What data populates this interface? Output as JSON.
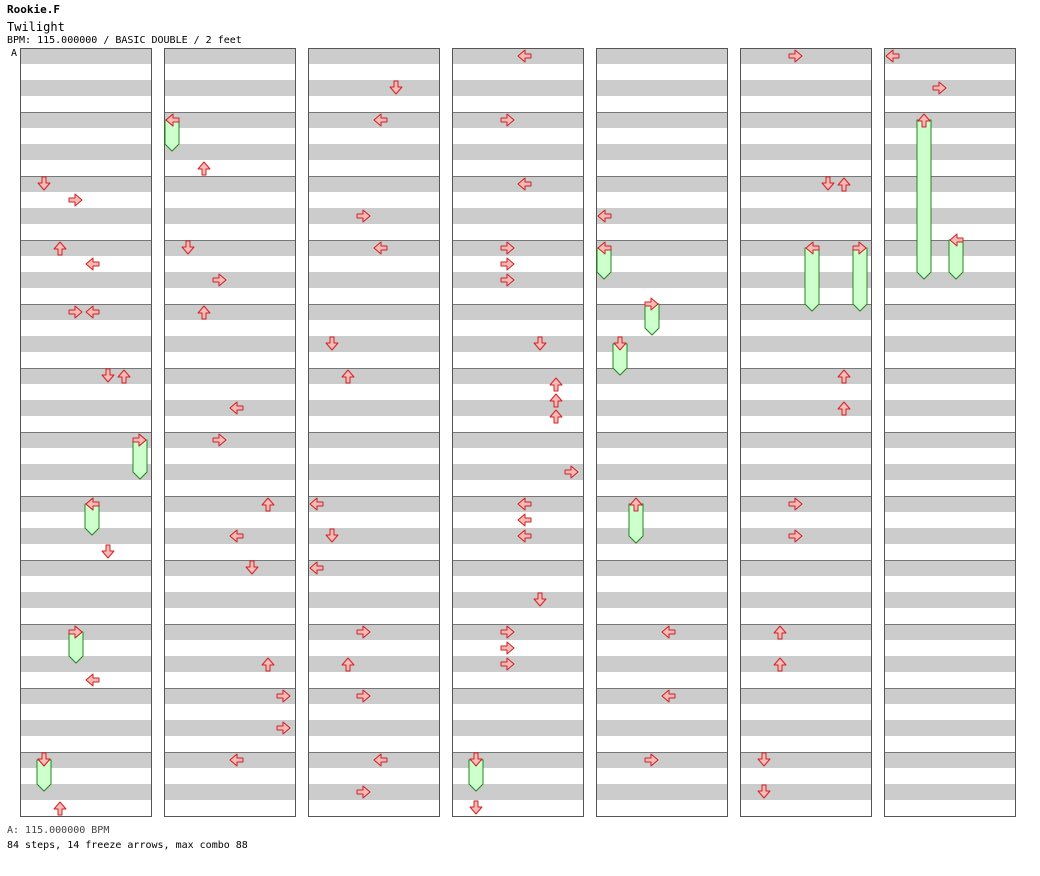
{
  "header": {
    "artist": "Rookie.F",
    "song": "Twilight",
    "info": "BPM: 115.000000 / BASIC DOUBLE / 2 feet"
  },
  "marker_label": "A",
  "footer": {
    "bpm_line": "A: 115.000000 BPM",
    "stats_line": "84 steps, 14 freeze arrows, max combo 88"
  },
  "colors": {
    "stripe_gray": "#cccccc",
    "stripe_white": "#ffffff",
    "border": "#555555",
    "arrow_fill": "#ffb8b8",
    "arrow_stroke": "#cc2222",
    "freeze_fill": "#ccffcc",
    "freeze_stroke": "#228822",
    "marker_line": "#3c7fd8"
  },
  "chart_data": {
    "type": "step-chart",
    "style": "BASIC DOUBLE",
    "bpm": 115,
    "lanes": 8,
    "lane_order": [
      "L",
      "D",
      "U",
      "R",
      "L",
      "D",
      "U",
      "R"
    ],
    "columns": 7,
    "measures_per_column": 12,
    "subdivisions_per_measure": 8,
    "freezes": [
      {
        "col": 0,
        "lane": 7,
        "start": 48,
        "end": 52.5
      },
      {
        "col": 0,
        "lane": 4,
        "start": 56,
        "end": 59.5
      },
      {
        "col": 0,
        "lane": 3,
        "start": 72,
        "end": 75.5
      },
      {
        "col": 0,
        "lane": 1,
        "start": 88,
        "end": 91.5
      },
      {
        "col": 1,
        "lane": 0,
        "start": 8,
        "end": 11.5
      },
      {
        "col": 3,
        "lane": 1,
        "start": 88,
        "end": 91.5
      },
      {
        "col": 4,
        "lane": 0,
        "start": 24,
        "end": 27.5
      },
      {
        "col": 4,
        "lane": 3,
        "start": 31,
        "end": 34.5
      },
      {
        "col": 4,
        "lane": 1,
        "start": 36,
        "end": 39.5
      },
      {
        "col": 4,
        "lane": 2,
        "start": 56,
        "end": 60.5
      },
      {
        "col": 5,
        "lane": 4,
        "start": 24,
        "end": 31.5
      },
      {
        "col": 5,
        "lane": 7,
        "start": 24,
        "end": 31.5
      },
      {
        "col": 6,
        "lane": 2,
        "start": 8,
        "end": 27.5
      },
      {
        "col": 6,
        "lane": 4,
        "start": 23,
        "end": 27.5
      }
    ],
    "notes": [
      {
        "col": 0,
        "lane": 1,
        "pos": 16
      },
      {
        "col": 0,
        "lane": 3,
        "pos": 18
      },
      {
        "col": 0,
        "lane": 2,
        "pos": 24
      },
      {
        "col": 0,
        "lane": 4,
        "pos": 26
      },
      {
        "col": 0,
        "lane": 3,
        "pos": 32
      },
      {
        "col": 0,
        "lane": 4,
        "pos": 32
      },
      {
        "col": 0,
        "lane": 5,
        "pos": 40
      },
      {
        "col": 0,
        "lane": 6,
        "pos": 40
      },
      {
        "col": 0,
        "lane": 7,
        "pos": 48
      },
      {
        "col": 0,
        "lane": 4,
        "pos": 56
      },
      {
        "col": 0,
        "lane": 5,
        "pos": 62
      },
      {
        "col": 0,
        "lane": 3,
        "pos": 72
      },
      {
        "col": 0,
        "lane": 4,
        "pos": 78
      },
      {
        "col": 0,
        "lane": 1,
        "pos": 88
      },
      {
        "col": 0,
        "lane": 2,
        "pos": 94
      },
      {
        "col": 1,
        "lane": 0,
        "pos": 8
      },
      {
        "col": 1,
        "lane": 2,
        "pos": 14
      },
      {
        "col": 1,
        "lane": 1,
        "pos": 24
      },
      {
        "col": 1,
        "lane": 3,
        "pos": 28
      },
      {
        "col": 1,
        "lane": 2,
        "pos": 32
      },
      {
        "col": 1,
        "lane": 4,
        "pos": 44
      },
      {
        "col": 1,
        "lane": 3,
        "pos": 48
      },
      {
        "col": 1,
        "lane": 6,
        "pos": 56
      },
      {
        "col": 1,
        "lane": 4,
        "pos": 60
      },
      {
        "col": 1,
        "lane": 5,
        "pos": 64
      },
      {
        "col": 1,
        "lane": 6,
        "pos": 76
      },
      {
        "col": 1,
        "lane": 7,
        "pos": 80
      },
      {
        "col": 1,
        "lane": 7,
        "pos": 84
      },
      {
        "col": 1,
        "lane": 4,
        "pos": 88
      },
      {
        "col": 2,
        "lane": 5,
        "pos": 4
      },
      {
        "col": 2,
        "lane": 4,
        "pos": 8
      },
      {
        "col": 2,
        "lane": 3,
        "pos": 20
      },
      {
        "col": 2,
        "lane": 4,
        "pos": 24
      },
      {
        "col": 2,
        "lane": 1,
        "pos": 36
      },
      {
        "col": 2,
        "lane": 2,
        "pos": 40
      },
      {
        "col": 2,
        "lane": 0,
        "pos": 56
      },
      {
        "col": 2,
        "lane": 1,
        "pos": 60
      },
      {
        "col": 2,
        "lane": 0,
        "pos": 64
      },
      {
        "col": 2,
        "lane": 3,
        "pos": 72
      },
      {
        "col": 2,
        "lane": 2,
        "pos": 76
      },
      {
        "col": 2,
        "lane": 3,
        "pos": 80
      },
      {
        "col": 2,
        "lane": 4,
        "pos": 88
      },
      {
        "col": 2,
        "lane": 3,
        "pos": 92
      },
      {
        "col": 3,
        "lane": 4,
        "pos": 0
      },
      {
        "col": 3,
        "lane": 3,
        "pos": 8
      },
      {
        "col": 3,
        "lane": 4,
        "pos": 16
      },
      {
        "col": 3,
        "lane": 3,
        "pos": 24
      },
      {
        "col": 3,
        "lane": 3,
        "pos": 26
      },
      {
        "col": 3,
        "lane": 3,
        "pos": 28
      },
      {
        "col": 3,
        "lane": 5,
        "pos": 36
      },
      {
        "col": 3,
        "lane": 6,
        "pos": 41
      },
      {
        "col": 3,
        "lane": 6,
        "pos": 43
      },
      {
        "col": 3,
        "lane": 6,
        "pos": 45
      },
      {
        "col": 3,
        "lane": 7,
        "pos": 52
      },
      {
        "col": 3,
        "lane": 4,
        "pos": 56
      },
      {
        "col": 3,
        "lane": 4,
        "pos": 58
      },
      {
        "col": 3,
        "lane": 4,
        "pos": 60
      },
      {
        "col": 3,
        "lane": 5,
        "pos": 68
      },
      {
        "col": 3,
        "lane": 3,
        "pos": 72
      },
      {
        "col": 3,
        "lane": 3,
        "pos": 74
      },
      {
        "col": 3,
        "lane": 3,
        "pos": 76
      },
      {
        "col": 3,
        "lane": 1,
        "pos": 94
      },
      {
        "col": 4,
        "lane": 0,
        "pos": 20
      },
      {
        "col": 4,
        "lane": 4,
        "pos": 72
      },
      {
        "col": 4,
        "lane": 4,
        "pos": 80
      },
      {
        "col": 4,
        "lane": 3,
        "pos": 88
      },
      {
        "col": 5,
        "lane": 3,
        "pos": 0
      },
      {
        "col": 5,
        "lane": 5,
        "pos": 16
      },
      {
        "col": 5,
        "lane": 6,
        "pos": 16
      },
      {
        "col": 5,
        "lane": 6,
        "pos": 40
      },
      {
        "col": 5,
        "lane": 6,
        "pos": 44
      },
      {
        "col": 5,
        "lane": 3,
        "pos": 56
      },
      {
        "col": 5,
        "lane": 3,
        "pos": 60
      },
      {
        "col": 5,
        "lane": 2,
        "pos": 72
      },
      {
        "col": 5,
        "lane": 2,
        "pos": 76
      },
      {
        "col": 5,
        "lane": 1,
        "pos": 88
      },
      {
        "col": 5,
        "lane": 1,
        "pos": 92
      },
      {
        "col": 6,
        "lane": 0,
        "pos": 0
      },
      {
        "col": 6,
        "lane": 3,
        "pos": 4
      }
    ]
  }
}
